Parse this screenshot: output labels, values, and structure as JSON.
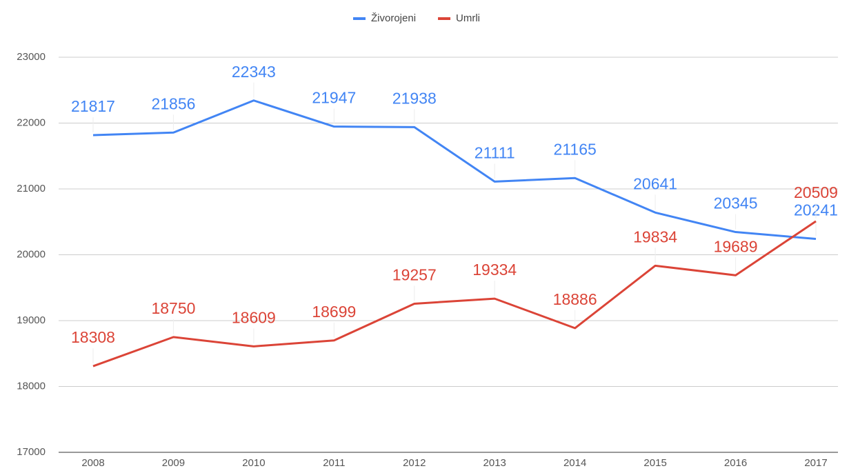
{
  "chart_data": {
    "type": "line",
    "categories": [
      "2008",
      "2009",
      "2010",
      "2011",
      "2012",
      "2013",
      "2014",
      "2015",
      "2016",
      "2017"
    ],
    "series": [
      {
        "name": "Živorojeni",
        "color": "#4285f4",
        "values": [
          21817,
          21856,
          22343,
          21947,
          21938,
          21111,
          21165,
          20641,
          20345,
          20241
        ]
      },
      {
        "name": "Umrli",
        "color": "#db4437",
        "values": [
          18308,
          18750,
          18609,
          18699,
          19257,
          19334,
          18886,
          19834,
          19689,
          20509
        ]
      }
    ],
    "ylim": [
      17000,
      23000
    ],
    "yticks": [
      17000,
      18000,
      19000,
      20000,
      21000,
      22000,
      23000
    ],
    "grid": true,
    "legend": "top",
    "data_labels": true
  }
}
